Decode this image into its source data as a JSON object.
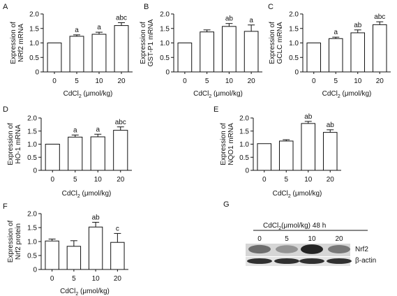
{
  "figure": {
    "panels": [
      {
        "letter": "A",
        "ylabel1": "Expression of",
        "ylabel2": "NRf2 mRNA",
        "xlabel_main": "CdCl",
        "xlabel_sub": "2",
        "xlabel_tail": " (μmol/kg)"
      },
      {
        "letter": "B",
        "ylabel1": "Expression of",
        "ylabel2": "GST-P1 mRNA",
        "xlabel_main": "CdCl",
        "xlabel_sub": "2",
        "xlabel_tail": " (μmol/kg)"
      },
      {
        "letter": "C",
        "ylabel1": "Expression of",
        "ylabel2": "GCLC mRNA",
        "xlabel_main": "CdCl",
        "xlabel_sub": "2",
        "xlabel_tail": " (μmol/kg)"
      },
      {
        "letter": "D",
        "ylabel1": "Expression of",
        "ylabel2": "HO-1 mRNA",
        "xlabel_main": "CdCl",
        "xlabel_sub": "2",
        "xlabel_tail": " (μmol/kg)"
      },
      {
        "letter": "E",
        "ylabel1": "Expression of",
        "ylabel2": "NQO1 mRNA",
        "xlabel_main": "CdCl",
        "xlabel_sub": "2",
        "xlabel_tail": " (μmol/kg)"
      },
      {
        "letter": "F",
        "ylabel1": "Expression of",
        "ylabel2": "Nrf2  protein",
        "xlabel_main": "CdCl",
        "xlabel_sub": "2",
        "xlabel_tail": " (μmol/kg)"
      }
    ],
    "blot": {
      "letter": "G",
      "header_main": "CdCl",
      "header_sub": "2",
      "header_tail": "(μmol/kg) 48 h",
      "lanes": [
        "0",
        "5",
        "10",
        "20"
      ],
      "bands": [
        "Nrf2",
        "β-actin"
      ],
      "nrf2_intensity": [
        0.55,
        0.35,
        0.95,
        0.5
      ],
      "actin_intensity": [
        0.85,
        0.85,
        0.85,
        0.85
      ]
    }
  },
  "chart_data": [
    {
      "type": "bar",
      "categories": [
        "0",
        "5",
        "10",
        "20"
      ],
      "values": [
        1.0,
        1.23,
        1.3,
        1.6
      ],
      "errors": [
        0.0,
        0.05,
        0.07,
        0.1
      ],
      "significance": [
        "",
        "a",
        "a",
        "abc"
      ],
      "ylim": [
        0,
        2.0
      ],
      "yticks": [
        "0",
        "0.5",
        "1.0",
        "1.5",
        "2.0"
      ],
      "ylabel": "Expression of NRf2 mRNA",
      "xlabel": "CdCl2 (μmol/kg)"
    },
    {
      "type": "bar",
      "categories": [
        "0",
        "5",
        "10",
        "20"
      ],
      "values": [
        1.0,
        1.38,
        1.57,
        1.4
      ],
      "errors": [
        0.0,
        0.07,
        0.1,
        0.22
      ],
      "significance": [
        "",
        "",
        "ab",
        "a"
      ],
      "ylim": [
        0,
        2.0
      ],
      "yticks": [
        "0",
        "0.5",
        "1.0",
        "1.5",
        "2.0"
      ],
      "ylabel": "Expression of GST-P1 mRNA",
      "xlabel": "CdCl2 (μmol/kg)"
    },
    {
      "type": "bar",
      "categories": [
        "0",
        "5",
        "10",
        "20"
      ],
      "values": [
        1.0,
        1.15,
        1.35,
        1.63
      ],
      "errors": [
        0.0,
        0.05,
        0.1,
        0.1
      ],
      "significance": [
        "",
        "a",
        "ab",
        "abc"
      ],
      "ylim": [
        0,
        2.0
      ],
      "yticks": [
        "0",
        "0.5",
        "1.0",
        "1.5",
        "2.0"
      ],
      "ylabel": "Expression of GCLC mRNA",
      "xlabel": "CdCl2 (μmol/kg)"
    },
    {
      "type": "bar",
      "categories": [
        "0",
        "5",
        "10",
        "20"
      ],
      "values": [
        1.0,
        1.27,
        1.28,
        1.53
      ],
      "errors": [
        0.0,
        0.08,
        0.1,
        0.13
      ],
      "significance": [
        "",
        "a",
        "a",
        "abc"
      ],
      "ylim": [
        0,
        2.0
      ],
      "yticks": [
        "0",
        "0.5",
        "1.0",
        "1.5",
        "2.0"
      ],
      "ylabel": "Expression of HO-1 mRNA",
      "xlabel": "CdCl2 (μmol/kg)"
    },
    {
      "type": "bar",
      "categories": [
        "0",
        "5",
        "10",
        "20"
      ],
      "values": [
        1.02,
        1.12,
        1.79,
        1.45
      ],
      "errors": [
        0.0,
        0.05,
        0.08,
        0.1
      ],
      "significance": [
        "",
        "",
        "ab",
        "ab"
      ],
      "ylim": [
        0,
        2.0
      ],
      "yticks": [
        "0",
        "0.5",
        "1.0",
        "1.5",
        "2.0"
      ],
      "ylabel": "Expression of NQO1 mRNA",
      "xlabel": "CdCl2 (μmol/kg)"
    },
    {
      "type": "bar",
      "categories": [
        "0",
        "5",
        "10",
        "20"
      ],
      "values": [
        1.02,
        0.83,
        1.52,
        0.97
      ],
      "errors": [
        0.07,
        0.2,
        0.17,
        0.32
      ],
      "significance": [
        "",
        "",
        "ab",
        "c"
      ],
      "ylim": [
        0,
        2.0
      ],
      "yticks": [
        "0",
        "0.5",
        "1.0",
        "1.5",
        "2.0"
      ],
      "ylabel": "Expression of Nrf2 protein",
      "xlabel": "CdCl2 (μmol/kg)"
    }
  ]
}
